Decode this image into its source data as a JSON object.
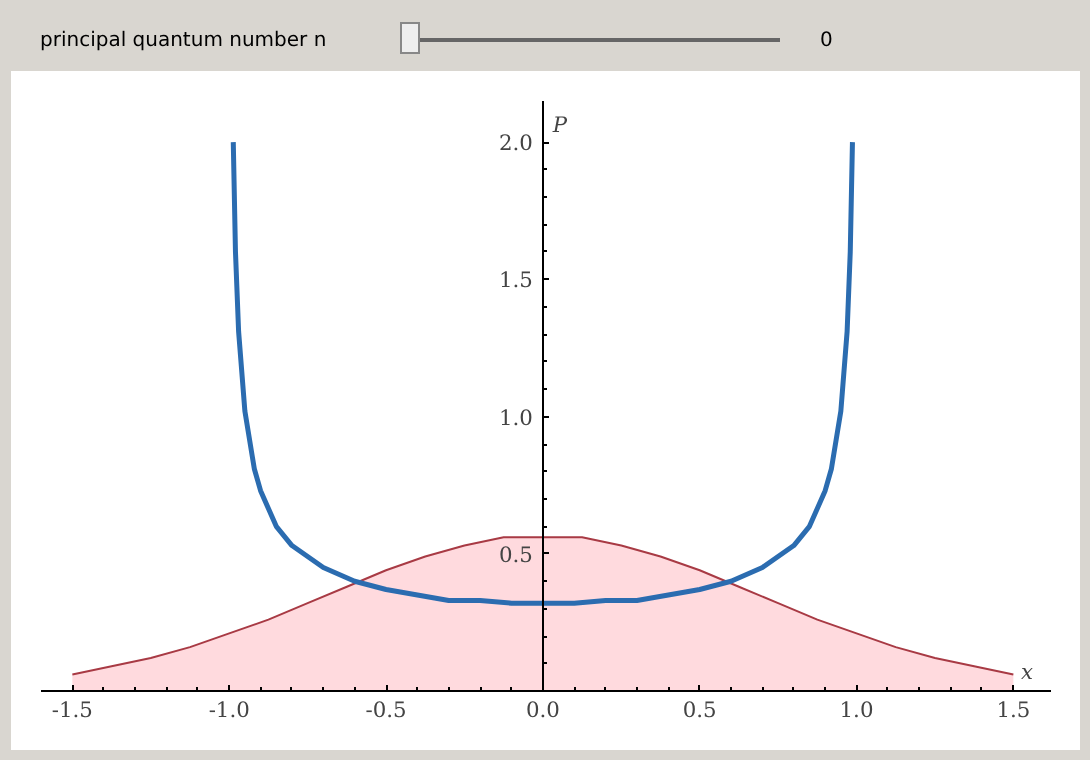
{
  "chart_data": {
    "type": "line",
    "xlabel": "x",
    "ylabel": "P",
    "annotations": [
      "principal quantum number n",
      "0"
    ],
    "xlim": [
      -1.6,
      1.62
    ],
    "ylim": [
      0,
      2.15
    ],
    "xticks": [
      {
        "value": -1.5,
        "label": "-1.5"
      },
      {
        "value": -1.0,
        "label": "-1.0"
      },
      {
        "value": -0.5,
        "label": "-0.5"
      },
      {
        "value": 0.0,
        "label": "0.0"
      },
      {
        "value": 0.5,
        "label": "0.5"
      },
      {
        "value": 1.0,
        "label": "1.0"
      },
      {
        "value": 1.5,
        "label": "1.5"
      }
    ],
    "yticks": [
      {
        "value": 0.5,
        "label": "0.5"
      },
      {
        "value": 1.0,
        "label": "1.0"
      },
      {
        "value": 1.5,
        "label": "1.5"
      },
      {
        "value": 2.0,
        "label": "2.0"
      }
    ],
    "grid": false,
    "series": [
      {
        "type": "area",
        "color": "#a83a44",
        "x": [
          -1.5,
          -1.375,
          -1.25,
          -1.125,
          -1.0,
          -0.875,
          -0.75,
          -0.625,
          -0.5,
          -0.375,
          -0.25,
          -0.125,
          0.0,
          0.125,
          0.25,
          0.375,
          0.5,
          0.625,
          0.75,
          0.875,
          1.0,
          1.125,
          1.25,
          1.375,
          1.5
        ],
        "values": [
          0.06,
          0.09,
          0.12,
          0.16,
          0.21,
          0.26,
          0.32,
          0.38,
          0.44,
          0.49,
          0.53,
          0.56,
          0.56,
          0.56,
          0.53,
          0.49,
          0.44,
          0.38,
          0.32,
          0.26,
          0.21,
          0.16,
          0.12,
          0.09,
          0.06
        ]
      },
      {
        "color": "#2b6cb0",
        "x": [
          -0.987,
          -0.98,
          -0.97,
          -0.95,
          -0.92,
          -0.9,
          -0.85,
          -0.8,
          -0.7,
          -0.6,
          -0.5,
          -0.4,
          -0.3,
          -0.2,
          -0.1,
          0.0,
          0.1,
          0.2,
          0.3,
          0.4,
          0.5,
          0.6,
          0.7,
          0.8,
          0.85,
          0.9,
          0.92,
          0.95,
          0.97,
          0.98,
          0.987
        ],
        "values": [
          2.0,
          1.6,
          1.31,
          1.02,
          0.81,
          0.73,
          0.6,
          0.53,
          0.45,
          0.4,
          0.37,
          0.35,
          0.33,
          0.33,
          0.32,
          0.32,
          0.32,
          0.33,
          0.33,
          0.35,
          0.37,
          0.4,
          0.45,
          0.53,
          0.6,
          0.73,
          0.81,
          1.02,
          1.31,
          1.6,
          2.0
        ]
      }
    ]
  }
}
